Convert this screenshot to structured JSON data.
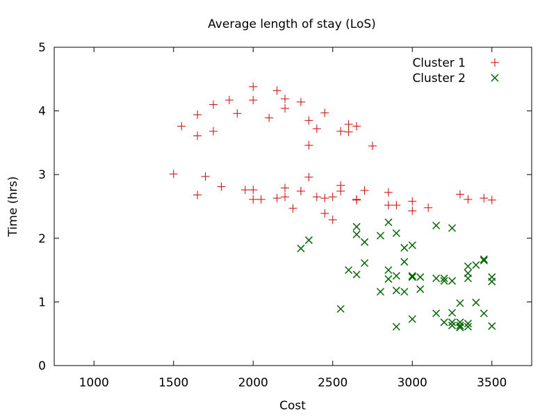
{
  "chart_data": {
    "type": "scatter",
    "title": "Average length of stay (LoS)",
    "xlabel": "Cost",
    "ylabel": "Time (hrs)",
    "xlim": [
      750,
      3750
    ],
    "ylim": [
      0,
      5
    ],
    "xticks": [
      1000,
      1500,
      2000,
      2500,
      3000,
      3500
    ],
    "yticks": [
      0,
      1,
      2,
      3,
      4,
      5
    ],
    "grid": false,
    "legend_position": "top-right",
    "series": [
      {
        "name": "Cluster 1",
        "marker": "plus",
        "color": "#cc0000",
        "points": [
          [
            1500,
            3.01
          ],
          [
            1550,
            3.76
          ],
          [
            1650,
            3.94
          ],
          [
            1650,
            3.61
          ],
          [
            1650,
            2.68
          ],
          [
            1700,
            2.97
          ],
          [
            1750,
            4.1
          ],
          [
            1750,
            3.68
          ],
          [
            1800,
            2.81
          ],
          [
            1850,
            4.17
          ],
          [
            1900,
            3.96
          ],
          [
            1950,
            2.76
          ],
          [
            2000,
            4.38
          ],
          [
            2000,
            4.17
          ],
          [
            2000,
            2.76
          ],
          [
            2000,
            2.61
          ],
          [
            2050,
            2.61
          ],
          [
            2100,
            3.89
          ],
          [
            2150,
            4.32
          ],
          [
            2150,
            2.63
          ],
          [
            2200,
            4.19
          ],
          [
            2200,
            4.04
          ],
          [
            2200,
            2.79
          ],
          [
            2200,
            2.65
          ],
          [
            2250,
            2.47
          ],
          [
            2300,
            4.14
          ],
          [
            2300,
            2.74
          ],
          [
            2300,
            2.74
          ],
          [
            2350,
            3.85
          ],
          [
            2350,
            3.46
          ],
          [
            2350,
            2.96
          ],
          [
            2400,
            3.72
          ],
          [
            2400,
            2.65
          ],
          [
            2450,
            3.97
          ],
          [
            2450,
            2.63
          ],
          [
            2450,
            2.39
          ],
          [
            2500,
            2.65
          ],
          [
            2500,
            2.29
          ],
          [
            2550,
            3.68
          ],
          [
            2550,
            2.83
          ],
          [
            2550,
            2.74
          ],
          [
            2600,
            3.79
          ],
          [
            2600,
            3.67
          ],
          [
            2650,
            3.76
          ],
          [
            2650,
            2.61
          ],
          [
            2650,
            2.6
          ],
          [
            2700,
            2.75
          ],
          [
            2750,
            3.45
          ],
          [
            2850,
            2.72
          ],
          [
            2850,
            2.52
          ],
          [
            2900,
            2.52
          ],
          [
            3000,
            2.58
          ],
          [
            3000,
            2.43
          ],
          [
            3100,
            2.48
          ],
          [
            3300,
            2.69
          ],
          [
            3350,
            2.61
          ],
          [
            3450,
            2.63
          ],
          [
            3500,
            2.6
          ]
        ]
      },
      {
        "name": "Cluster 2",
        "marker": "cross",
        "color": "#006400",
        "points": [
          [
            2300,
            1.84
          ],
          [
            2350,
            1.97
          ],
          [
            2550,
            0.89
          ],
          [
            2600,
            1.5
          ],
          [
            2650,
            2.18
          ],
          [
            2650,
            2.06
          ],
          [
            2650,
            1.43
          ],
          [
            2700,
            1.94
          ],
          [
            2700,
            1.61
          ],
          [
            2800,
            2.04
          ],
          [
            2800,
            1.16
          ],
          [
            2850,
            2.25
          ],
          [
            2850,
            1.5
          ],
          [
            2850,
            1.36
          ],
          [
            2900,
            2.08
          ],
          [
            2900,
            1.41
          ],
          [
            2900,
            1.18
          ],
          [
            2900,
            0.61
          ],
          [
            2950,
            1.85
          ],
          [
            2950,
            1.63
          ],
          [
            2950,
            1.16
          ],
          [
            3000,
            1.89
          ],
          [
            3000,
            1.41
          ],
          [
            3000,
            1.39
          ],
          [
            3000,
            0.73
          ],
          [
            3050,
            1.39
          ],
          [
            3050,
            1.2
          ],
          [
            3150,
            2.2
          ],
          [
            3150,
            1.37
          ],
          [
            3150,
            0.82
          ],
          [
            3200,
            1.37
          ],
          [
            3200,
            1.33
          ],
          [
            3200,
            0.68
          ],
          [
            3250,
            2.16
          ],
          [
            3250,
            1.33
          ],
          [
            3250,
            0.83
          ],
          [
            3250,
            0.68
          ],
          [
            3250,
            0.63
          ],
          [
            3300,
            0.98
          ],
          [
            3300,
            0.68
          ],
          [
            3300,
            0.63
          ],
          [
            3300,
            0.6
          ],
          [
            3300,
            0.6
          ],
          [
            3350,
            1.56
          ],
          [
            3350,
            1.45
          ],
          [
            3350,
            1.37
          ],
          [
            3350,
            0.66
          ],
          [
            3350,
            0.61
          ],
          [
            3400,
            1.58
          ],
          [
            3400,
            0.99
          ],
          [
            3450,
            1.67
          ],
          [
            3450,
            1.65
          ],
          [
            3450,
            0.82
          ],
          [
            3500,
            1.39
          ],
          [
            3500,
            1.32
          ],
          [
            3500,
            0.62
          ]
        ]
      }
    ]
  }
}
